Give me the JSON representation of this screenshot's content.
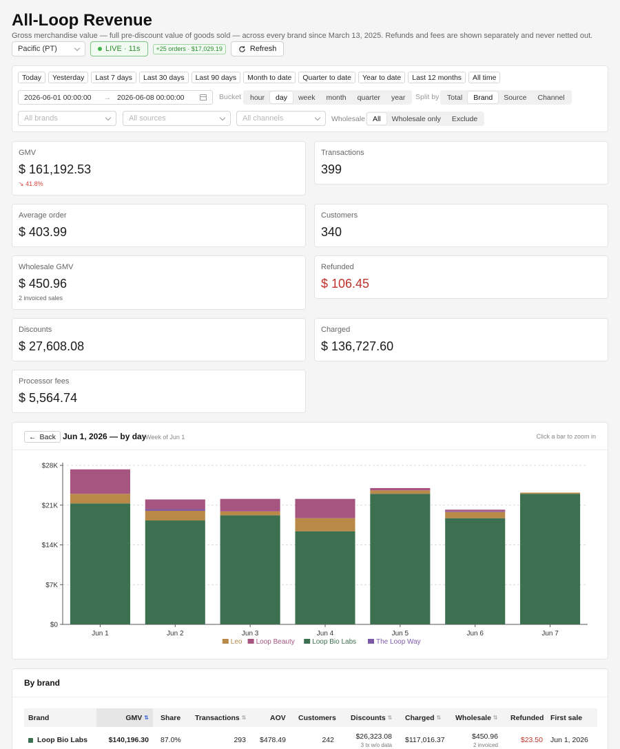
{
  "header": {
    "title": "All-Loop Revenue",
    "subtitle": "Gross merchandise value — full pre-discount value of goods sold — across every brand since March 13, 2025. Refunds and fees are shown separately and never netted out."
  },
  "topbar": {
    "timezone": "Pacific (PT)",
    "live": "LIVE · 11s",
    "orders_badge": "+25 orders · $17,029.19",
    "refresh": "Refresh"
  },
  "filters": {
    "presets": [
      "Today",
      "Yesterday",
      "Last 7 days",
      "Last 30 days",
      "Last 90 days",
      "Month to date",
      "Quarter to date",
      "Year to date",
      "Last 12 months",
      "All time"
    ],
    "date_from": "2026-06-01 00:00:00",
    "date_to": "2026-06-08 00:00:00",
    "bucket_label": "Bucket",
    "bucket_options": [
      "hour",
      "day",
      "week",
      "month",
      "quarter",
      "year"
    ],
    "bucket_selected": "day",
    "split_label": "Split by",
    "split_options": [
      "Total",
      "Brand",
      "Source",
      "Channel"
    ],
    "split_selected": "Brand",
    "brands_placeholder": "All brands",
    "sources_placeholder": "All sources",
    "channels_placeholder": "All channels",
    "wholesale_label": "Wholesale",
    "wholesale_options": [
      "All",
      "Wholesale only",
      "Exclude"
    ],
    "wholesale_selected": "All"
  },
  "metrics": {
    "gmv": {
      "label": "GMV",
      "value": "$ 161,192.53",
      "delta": "41.8%"
    },
    "transactions": {
      "label": "Transactions",
      "value": "399"
    },
    "aov": {
      "label": "Average order",
      "value": "$ 403.99"
    },
    "customers": {
      "label": "Customers",
      "value": "340"
    },
    "wholesale": {
      "label": "Wholesale GMV",
      "value": "$ 450.96",
      "note": "2 invoiced sales"
    },
    "refunded": {
      "label": "Refunded",
      "value": "$ 106.45"
    },
    "discounts": {
      "label": "Discounts",
      "value": "$ 27,608.08"
    },
    "charged": {
      "label": "Charged",
      "value": "$ 136,727.60"
    },
    "fees": {
      "label": "Processor fees",
      "value": "$ 5,564.74"
    }
  },
  "chart": {
    "back": "Back",
    "title": "Jun 1, 2026 — by day",
    "week": "Week of Jun 1",
    "hint": "Click a bar to zoom in"
  },
  "chart_data": {
    "type": "bar",
    "stacked": true,
    "categories": [
      "Jun 1",
      "Jun 2",
      "Jun 3",
      "Jun 4",
      "Jun 5",
      "Jun 6",
      "Jun 7"
    ],
    "series": [
      {
        "name": "Loop Bio Labs",
        "color": "#3d7050",
        "values": [
          21300,
          18300,
          19200,
          16400,
          23000,
          18700,
          23000
        ]
      },
      {
        "name": "Leo",
        "color": "#b9894a",
        "values": [
          1700,
          1700,
          700,
          2300,
          600,
          1100,
          200
        ]
      },
      {
        "name": "The Loop Way",
        "color": "#7d5aa8",
        "values": [
          0,
          300,
          0,
          0,
          0,
          100,
          0
        ]
      },
      {
        "name": "Loop Beauty",
        "color": "#a65580",
        "values": [
          4300,
          1700,
          2200,
          3400,
          400,
          300,
          0
        ]
      }
    ],
    "legend_order": [
      "Leo",
      "Loop Beauty",
      "Loop Bio Labs",
      "The Loop Way"
    ],
    "legend_position": "bottom",
    "y_ticks": [
      "$0",
      "$7K",
      "$14K",
      "$21K",
      "$28K"
    ],
    "ylim": [
      0,
      28000
    ],
    "grid": true
  },
  "brand_table": {
    "title": "By brand",
    "columns": {
      "brand": "Brand",
      "gmv": "GMV",
      "share": "Share",
      "transactions": "Transactions",
      "aov": "AOV",
      "customers": "Customers",
      "discounts": "Discounts",
      "charged": "Charged",
      "wholesale": "Wholesale",
      "refunded": "Refunded",
      "first_sale": "First sale"
    },
    "rows": [
      {
        "brand": "Loop Bio Labs",
        "color": "#3d7050",
        "gmv": "$140,196.30",
        "share": "87.0%",
        "transactions": "293",
        "aov": "$478.49",
        "customers": "242",
        "discounts": "$26,323.08",
        "discounts_note": "3 tx w/o data",
        "charged": "$117,016.37",
        "wholesale": "$450.96",
        "wholesale_note": "2 invoiced",
        "refunded": "$23.50",
        "first_sale": "Jun 1, 2026"
      }
    ]
  }
}
